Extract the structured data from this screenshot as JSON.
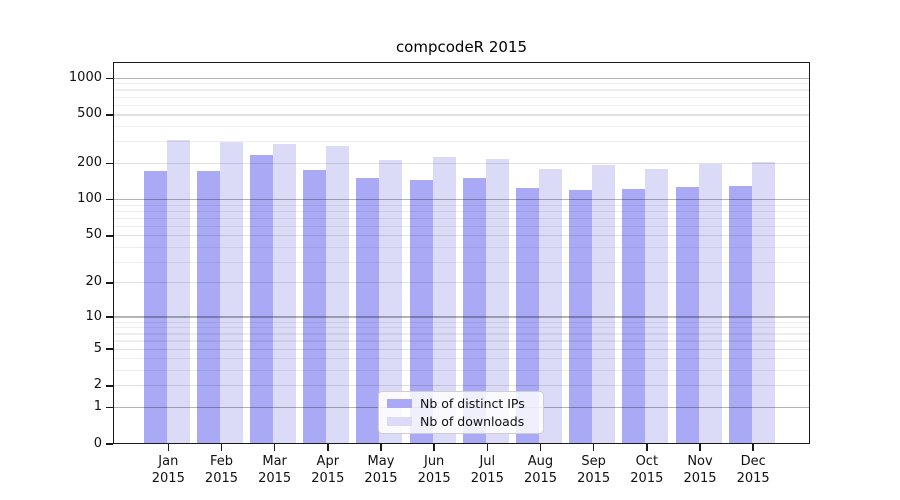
{
  "title": "compcodeR 2015",
  "chart_data": {
    "type": "bar",
    "title": "compcodeR 2015",
    "categories": [
      "Jan 2015",
      "Feb 2015",
      "Mar 2015",
      "Apr 2015",
      "May 2015",
      "Jun 2015",
      "Jul 2015",
      "Aug 2015",
      "Sep 2015",
      "Oct 2015",
      "Nov 2015",
      "Dec 2015"
    ],
    "series": [
      {
        "name": "Nb of distinct IPs",
        "color": "#a9a9f5",
        "values": [
          174,
          172,
          233,
          177,
          151,
          146,
          150,
          125,
          120,
          122,
          127,
          130
        ]
      },
      {
        "name": "Nb of downloads",
        "color": "#dbdbf8",
        "values": [
          313,
          298,
          291,
          275,
          212,
          226,
          216,
          181,
          195,
          179,
          199,
          203
        ]
      }
    ],
    "xlabel": "",
    "ylabel": "",
    "yscale": "log1p",
    "yticks": [
      0,
      1,
      2,
      5,
      10,
      20,
      50,
      100,
      200,
      500,
      1000
    ],
    "minor_yticks": [
      3,
      4,
      6,
      7,
      8,
      9,
      30,
      40,
      60,
      70,
      80,
      90,
      300,
      400,
      600,
      700,
      800,
      900
    ],
    "ylim": [
      0,
      1360
    ],
    "grid": "horizontal",
    "grid_color_power10": "#b5b5b5",
    "grid_color_labeled": "#e1e1e1",
    "grid_color_minor": "#eeeeee",
    "legend_position": "inside-bottom-center"
  }
}
